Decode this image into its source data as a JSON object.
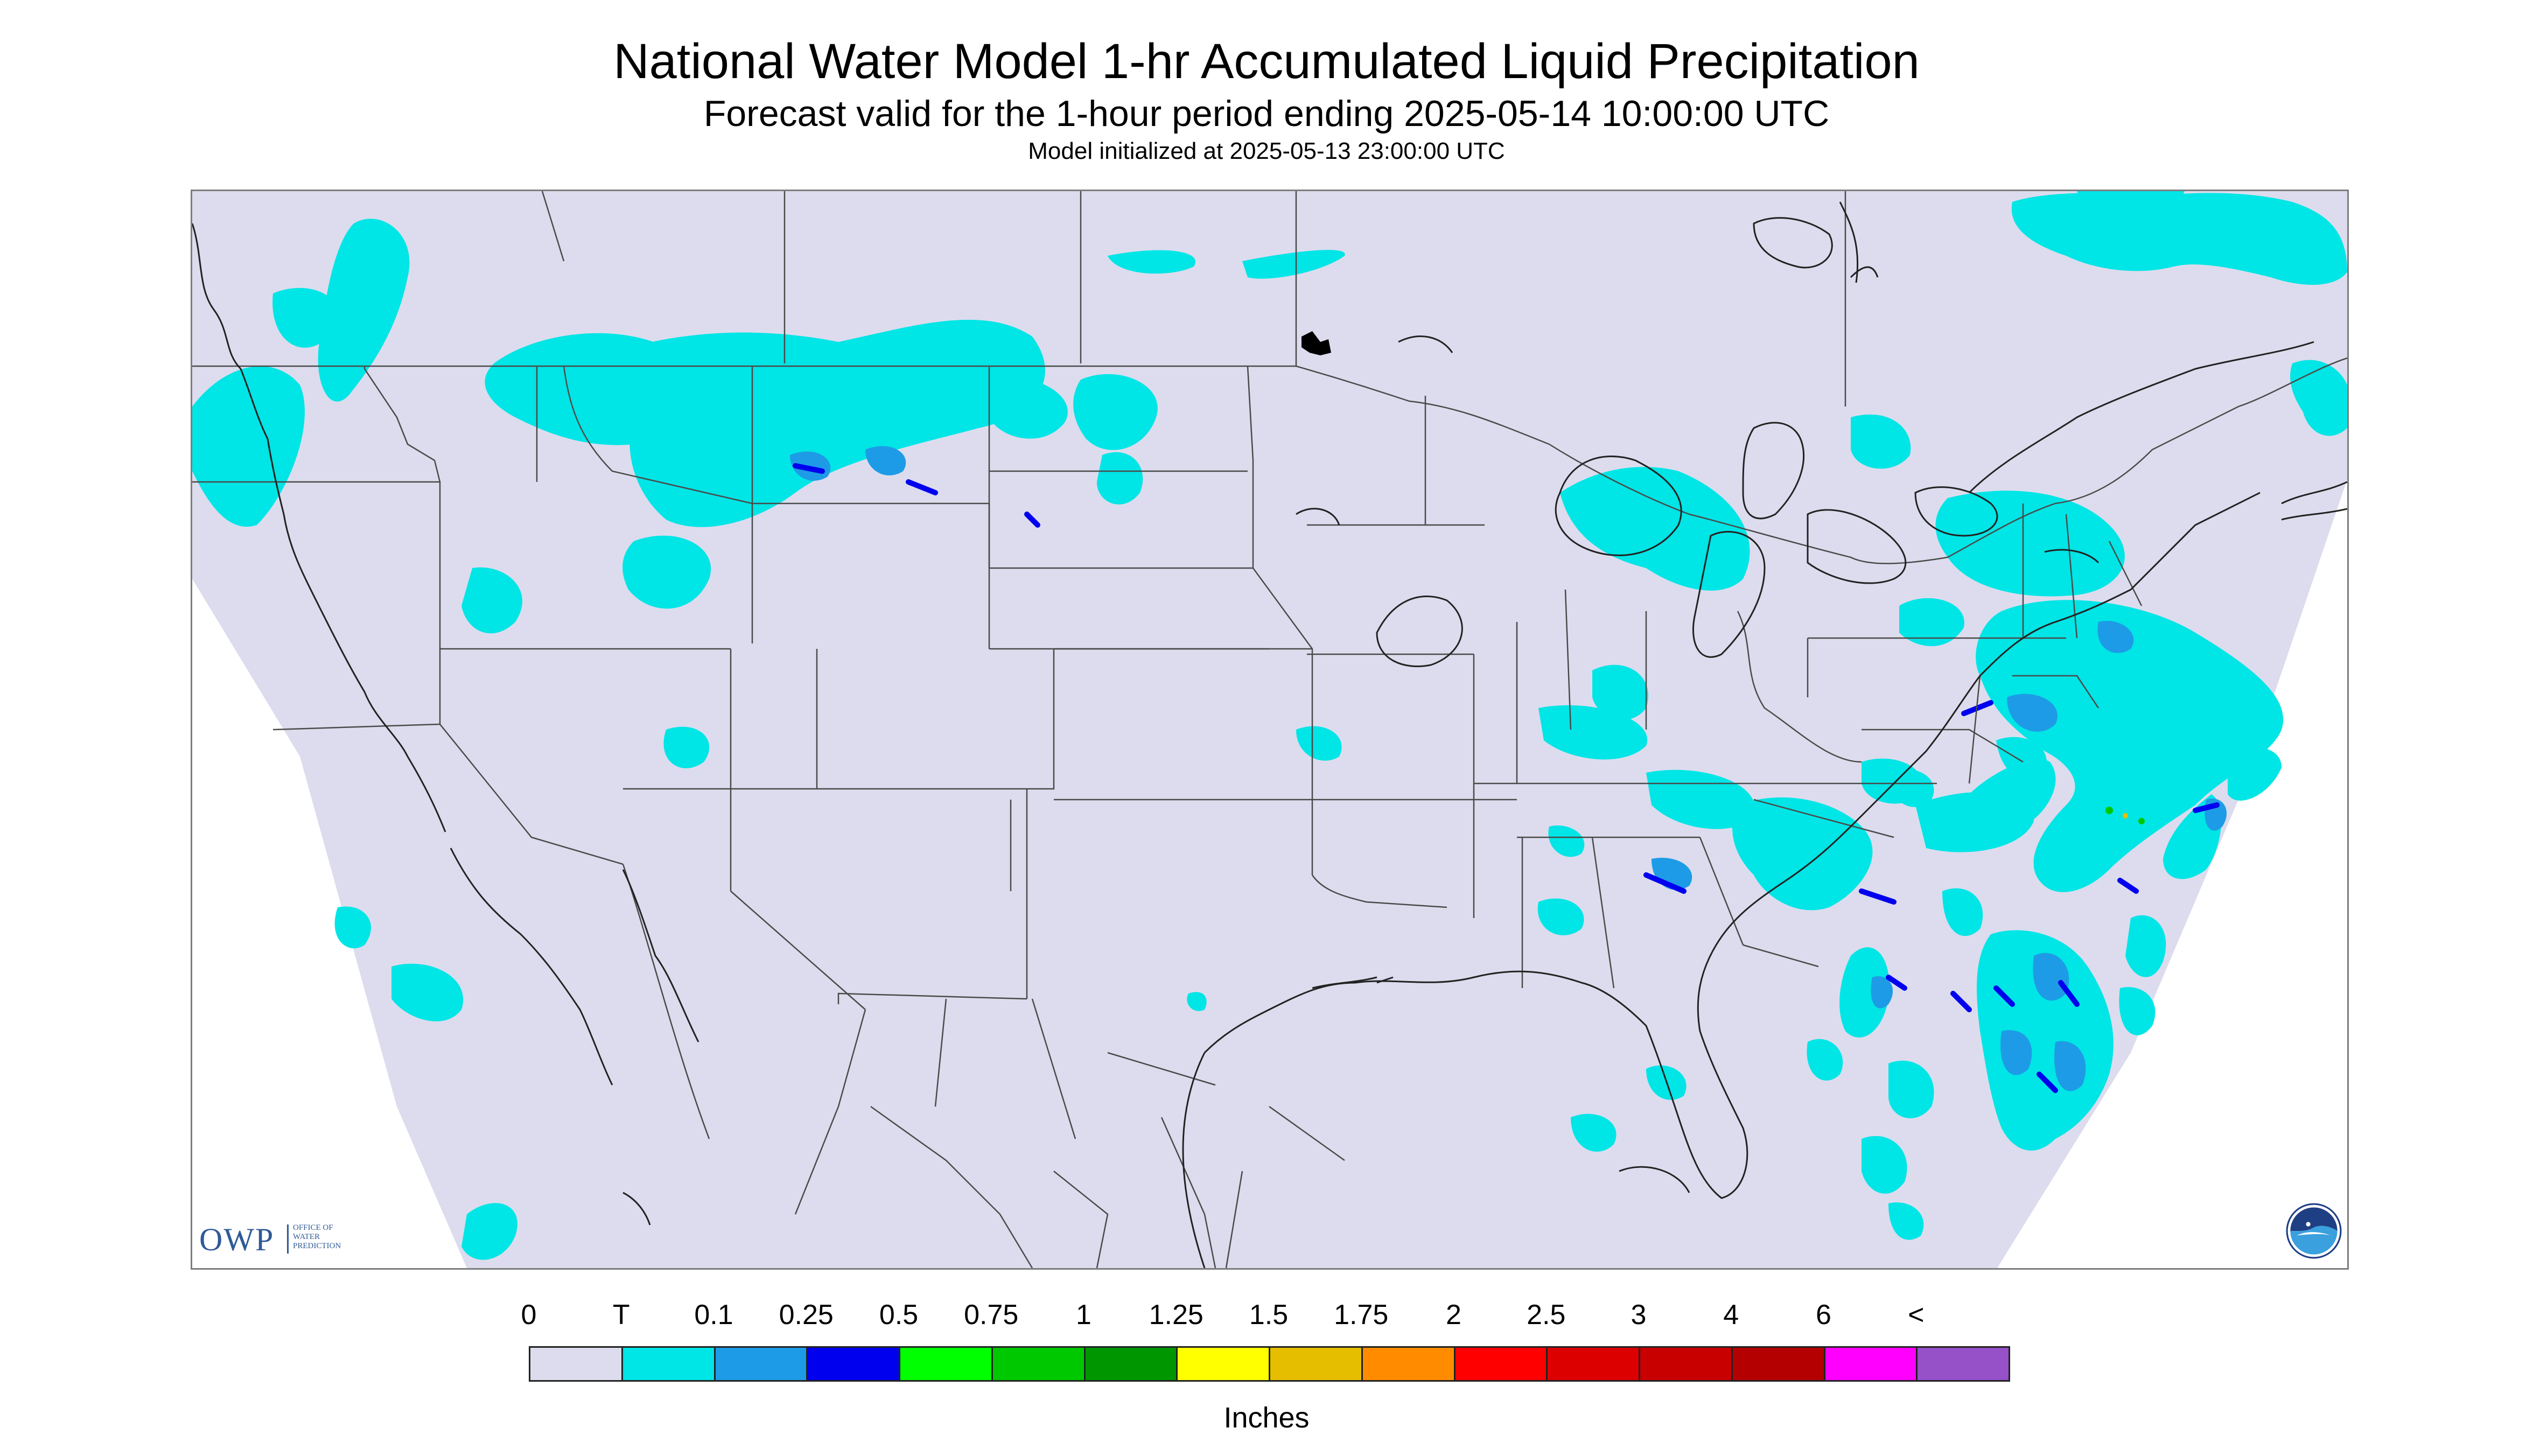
{
  "title": "National Water Model 1-hr Accumulated Liquid Precipitation",
  "subtitle": "Forecast valid for the 1-hour period ending 2025-05-14 10:00:00 UTC",
  "init_text": "Model initialized at 2025-05-13 23:00:00 UTC",
  "logo": {
    "text": "OWP",
    "lines": [
      "OFFICE OF",
      "WATER",
      "PREDICTION"
    ]
  },
  "noaa_logo": "noaa-seal",
  "colors": {
    "background_field": "#dcdcee",
    "map_lines": "#4a4a4a",
    "trace": "#00e5e5",
    "light": "#1e9be6",
    "heavy": "#0000ee"
  },
  "legend": {
    "ticks": [
      "0",
      "T",
      "0.1",
      "0.25",
      "0.5",
      "0.75",
      "1",
      "1.25",
      "1.5",
      "1.75",
      "2",
      "2.5",
      "3",
      "4",
      "6",
      "<"
    ],
    "colors": [
      "#dcdcee",
      "#00e5e5",
      "#1e9be6",
      "#0000ee",
      "#00ff00",
      "#00c800",
      "#009600",
      "#ffff00",
      "#e6be00",
      "#ff8c00",
      "#ff0000",
      "#dc0000",
      "#c80000",
      "#b40000",
      "#ff00ff",
      "#9650c8"
    ],
    "units": "Inches"
  }
}
